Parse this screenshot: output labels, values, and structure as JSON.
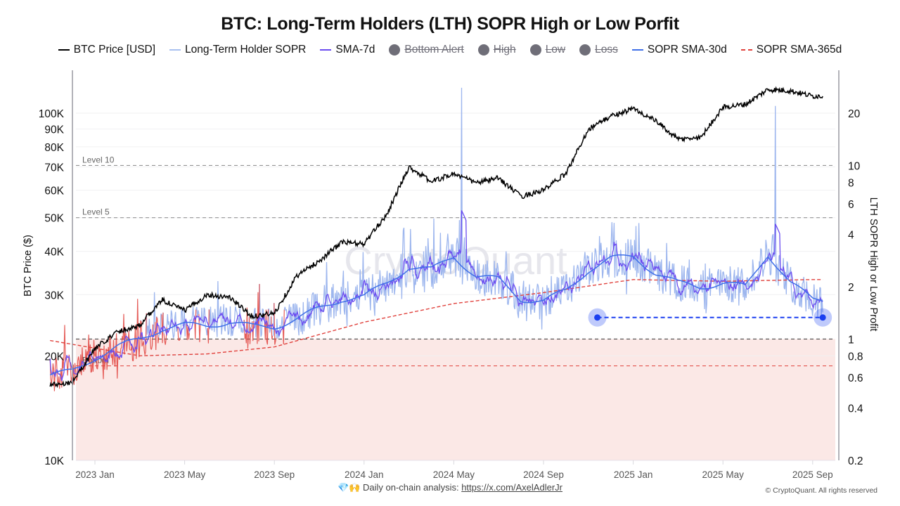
{
  "title": "BTC: Long-Term Holders (LTH) SOPR High or Low Porfit",
  "legend": [
    {
      "label": "BTC Price [USD]",
      "kind": "line",
      "color": "#000000",
      "enabled": true
    },
    {
      "label": "Long-Term Holder SOPR",
      "kind": "line",
      "color": "#a8c0ef",
      "enabled": true
    },
    {
      "label": "SMA-7d",
      "kind": "line",
      "color": "#6b4cf0",
      "enabled": true
    },
    {
      "label": "Bottom Alert",
      "kind": "dot",
      "color": "#6f6e78",
      "enabled": false
    },
    {
      "label": "High",
      "kind": "dot",
      "color": "#6f6e78",
      "enabled": false
    },
    {
      "label": "Low",
      "kind": "dot",
      "color": "#6f6e78",
      "enabled": false
    },
    {
      "label": "Loss",
      "kind": "dot",
      "color": "#6f6e78",
      "enabled": false
    },
    {
      "label": "SOPR SMA-30d",
      "kind": "line",
      "color": "#3f6fe8",
      "enabled": true
    },
    {
      "label": "SOPR SMA-365d",
      "kind": "dash",
      "color": "#e0413c",
      "enabled": true
    }
  ],
  "watermark": "CryptoQuant",
  "footer": {
    "prefix_icons": "💎🙌",
    "text": "Daily on-chain analysis:",
    "link": "https://x.com/AxelAdlerJr",
    "copyright": "© CryptoQuant. All rights reserved"
  },
  "colors": {
    "price": "#000000",
    "sopr": "#9db6ee",
    "sopr_loss": "#e0413c",
    "sma7": "#6b4cf0",
    "sma30": "#3f6fe8",
    "sma365": "#e0413c",
    "loss_zone": "#fbe8e6",
    "alert_marker": "#1a3ff0"
  },
  "chart_data": {
    "type": "line",
    "title": "BTC: Long-Term Holders (LTH) SOPR High or Low Porfit",
    "x_range": [
      "2022-11",
      "2025-09"
    ],
    "x_ticks": [
      "2023 Jan",
      "2023 May",
      "2023 Sep",
      "2024 Jan",
      "2024 May",
      "2024 Sep",
      "2025 Jan",
      "2025 May",
      "2025 Sep"
    ],
    "left_axis": {
      "label": "BTC Price ($)",
      "scale": "log",
      "range": [
        10000,
        130000
      ],
      "ticks": [
        {
          "value": 10000,
          "label": "10K"
        },
        {
          "value": 20000,
          "label": "20K"
        },
        {
          "value": 30000,
          "label": "30K"
        },
        {
          "value": 40000,
          "label": "40K"
        },
        {
          "value": 50000,
          "label": "50K"
        },
        {
          "value": 60000,
          "label": "60K"
        },
        {
          "value": 70000,
          "label": "70K"
        },
        {
          "value": 80000,
          "label": "80K"
        },
        {
          "value": 90000,
          "label": "90K"
        },
        {
          "value": 100000,
          "label": "100K"
        }
      ]
    },
    "right_axis": {
      "label": "LTH SOPR High or Low Profit",
      "scale": "log",
      "range": [
        0.2,
        30
      ],
      "ticks": [
        {
          "value": 0.2,
          "label": "0.2"
        },
        {
          "value": 0.4,
          "label": "0.4"
        },
        {
          "value": 0.6,
          "label": "0.6"
        },
        {
          "value": 0.8,
          "label": "0.8"
        },
        {
          "value": 1,
          "label": "1"
        },
        {
          "value": 2,
          "label": "2"
        },
        {
          "value": 4,
          "label": "4"
        },
        {
          "value": 6,
          "label": "6"
        },
        {
          "value": 8,
          "label": "8"
        },
        {
          "value": 10,
          "label": "10"
        },
        {
          "value": 20,
          "label": "20"
        }
      ]
    },
    "reference_lines": [
      {
        "label": "Level 10",
        "value": 10,
        "axis": "right",
        "color": "#888888"
      },
      {
        "label": "Level 5",
        "value": 5,
        "axis": "right",
        "color": "#888888"
      },
      {
        "label": "",
        "value": 1,
        "axis": "right",
        "color": "#333333"
      },
      {
        "label": "Bottom",
        "value": 0.7,
        "axis": "right",
        "color": "#e0413c"
      }
    ],
    "alert_line": {
      "value": 1.33,
      "from": "2024-11",
      "to": "2025-09"
    },
    "series": [
      {
        "name": "BTC Price [USD]",
        "axis": "left",
        "x": [
          "2022-11",
          "2022-12",
          "2023-01",
          "2023-02",
          "2023-03",
          "2023-04",
          "2023-05",
          "2023-06",
          "2023-07",
          "2023-08",
          "2023-09",
          "2023-10",
          "2023-11",
          "2023-12",
          "2024-01",
          "2024-02",
          "2024-03",
          "2024-04",
          "2024-05",
          "2024-06",
          "2024-07",
          "2024-08",
          "2024-09",
          "2024-10",
          "2024-11",
          "2024-12",
          "2025-01",
          "2025-02",
          "2025-03",
          "2025-04",
          "2025-05",
          "2025-06",
          "2025-07",
          "2025-08",
          "2025-09"
        ],
        "values": [
          16500,
          16800,
          21000,
          23500,
          24500,
          29000,
          27000,
          30000,
          29500,
          26000,
          26500,
          34000,
          37500,
          42500,
          42000,
          51000,
          70000,
          63500,
          67000,
          63000,
          65000,
          57500,
          60000,
          67000,
          90000,
          98000,
          103000,
          95000,
          84000,
          85000,
          104000,
          106000,
          117000,
          116000,
          112000
        ]
      },
      {
        "name": "Long-Term Holder SOPR (approx. 30d average)",
        "axis": "right",
        "x": [
          "2022-11",
          "2022-12",
          "2023-01",
          "2023-02",
          "2023-03",
          "2023-04",
          "2023-05",
          "2023-06",
          "2023-07",
          "2023-08",
          "2023-09",
          "2023-10",
          "2023-11",
          "2023-12",
          "2024-01",
          "2024-02",
          "2024-03",
          "2024-04",
          "2024-05",
          "2024-06",
          "2024-07",
          "2024-08",
          "2024-09",
          "2024-10",
          "2024-11",
          "2024-12",
          "2025-01",
          "2025-02",
          "2025-03",
          "2025-04",
          "2025-05",
          "2025-06",
          "2025-07",
          "2025-08",
          "2025-09"
        ],
        "values": [
          0.62,
          0.65,
          0.78,
          0.9,
          1.0,
          1.15,
          1.2,
          1.2,
          1.25,
          1.18,
          1.18,
          1.3,
          1.5,
          1.7,
          1.75,
          2.1,
          2.6,
          2.5,
          3.0,
          2.3,
          2.2,
          1.7,
          1.65,
          1.9,
          2.5,
          2.9,
          3.0,
          2.4,
          2.1,
          2.0,
          2.1,
          2.0,
          3.1,
          2.1,
          1.7
        ]
      },
      {
        "name": "SOPR SMA-365d",
        "axis": "right",
        "x": [
          "2022-11",
          "2023-03",
          "2023-06",
          "2023-09",
          "2024-01",
          "2024-05",
          "2024-09",
          "2025-01",
          "2025-05",
          "2025-09"
        ],
        "values": [
          0.98,
          0.8,
          0.82,
          0.9,
          1.25,
          1.6,
          1.85,
          2.2,
          2.15,
          2.2
        ]
      }
    ],
    "spikes": [
      {
        "date": "2024-05",
        "value": 28,
        "sma7": 5.5
      },
      {
        "date": "2025-07",
        "value": 22,
        "sma7": 4.6
      }
    ],
    "legend_position": "top-center",
    "grid": true
  }
}
